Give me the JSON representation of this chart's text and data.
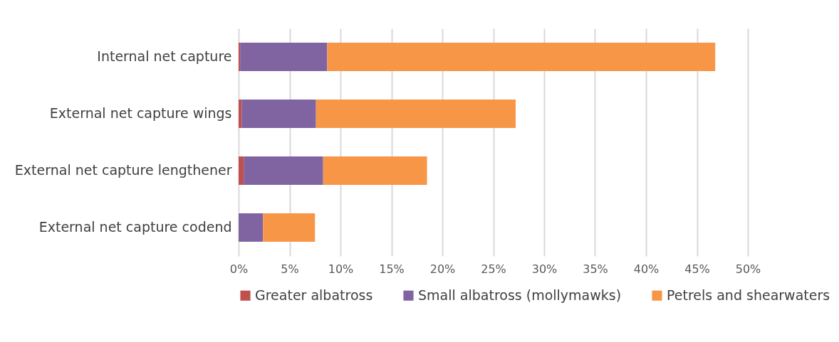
{
  "chart_data": {
    "type": "bar",
    "orientation": "horizontal",
    "stacked": true,
    "categories": [
      "Internal net capture",
      "External net capture wings",
      "External net capture lengthener",
      "External net capture codend"
    ],
    "series": [
      {
        "name": "Greater albatross",
        "color": "#c0504d",
        "values": [
          0.15,
          0.3,
          0.5,
          0
        ]
      },
      {
        "name": "Small albatross (mollymawks)",
        "color": "#8064a2",
        "values": [
          8.55,
          7.3,
          7.8,
          2.4
        ]
      },
      {
        "name": "Petrels and shearwaters",
        "color": "#f79646",
        "values": [
          38.1,
          19.6,
          10.2,
          5.1
        ]
      }
    ],
    "xlim": [
      0,
      50
    ],
    "xticks": [
      {
        "value": 0,
        "label": "0%"
      },
      {
        "value": 5,
        "label": "5%"
      },
      {
        "value": 10,
        "label": "10%"
      },
      {
        "value": 15,
        "label": "15%"
      },
      {
        "value": 20,
        "label": "20%"
      },
      {
        "value": 25,
        "label": "25%"
      },
      {
        "value": 30,
        "label": "30%"
      },
      {
        "value": 35,
        "label": "35%"
      },
      {
        "value": 40,
        "label": "40%"
      },
      {
        "value": 45,
        "label": "45%"
      },
      {
        "value": 50,
        "label": "50%"
      }
    ],
    "grid": "x",
    "legend": "bottom"
  }
}
